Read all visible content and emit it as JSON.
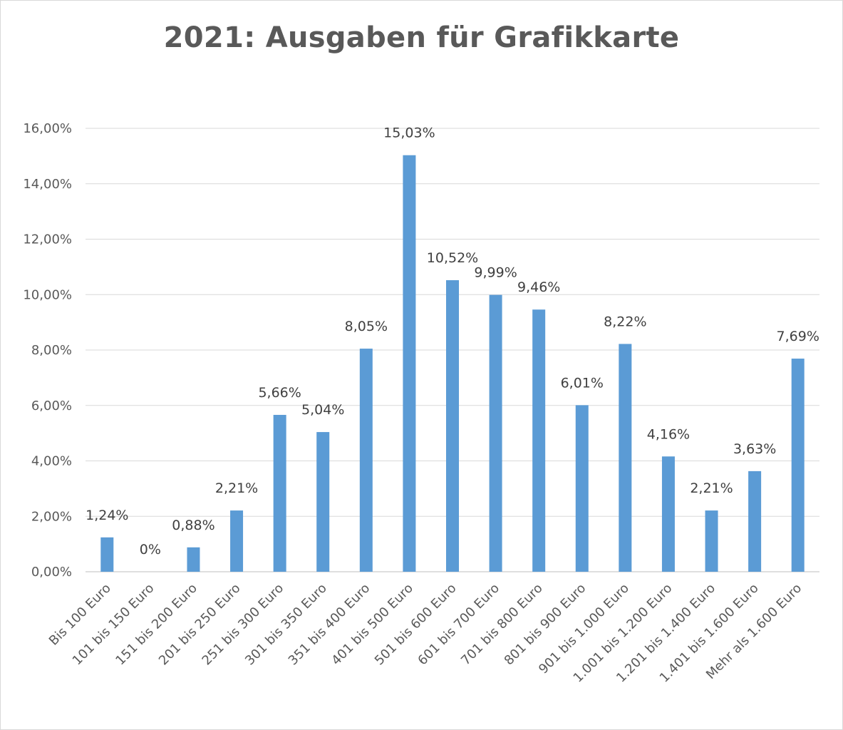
{
  "chart_data": {
    "type": "bar",
    "title": "2021: Ausgaben für Grafikkarte",
    "xlabel": "",
    "ylabel": "",
    "ylim": [
      0,
      16
    ],
    "yticks": [
      0,
      2,
      4,
      6,
      8,
      10,
      12,
      14,
      16
    ],
    "ytick_labels": [
      "0,00%",
      "2,00%",
      "4,00%",
      "6,00%",
      "8,00%",
      "10,00%",
      "12,00%",
      "14,00%",
      "16,00%"
    ],
    "grid": true,
    "legend": "none",
    "bar_color": "#5b9bd5",
    "categories": [
      "Bis 100 Euro",
      "101 bis 150 Euro",
      "151 bis 200 Euro",
      "201 bis 250 Euro",
      "251 bis 300 Euro",
      "301 bis 350 Euro",
      "351 bis 400 Euro",
      "401 bis 500 Euro",
      "501 bis 600 Euro",
      "601 bis 700 Euro",
      "701 bis 800 Euro",
      "801 bis 900 Euro",
      "901 bis 1.000 Euro",
      "1.001 bis 1.200 Euro",
      "1.201 bis 1.400 Euro",
      "1.401 bis 1.600 Euro",
      "Mehr als 1.600 Euro"
    ],
    "values": [
      1.24,
      0,
      0.88,
      2.21,
      5.66,
      5.04,
      8.05,
      15.03,
      10.52,
      9.99,
      9.46,
      6.01,
      8.22,
      4.16,
      2.21,
      3.63,
      7.69
    ],
    "data_labels": [
      "1,24%",
      "0%",
      "0,88%",
      "2,21%",
      "5,66%",
      "5,04%",
      "8,05%",
      "15,03%",
      "10,52%",
      "9,99%",
      "9,46%",
      "6,01%",
      "8,22%",
      "4,16%",
      "2,21%",
      "3,63%",
      "7,69%"
    ]
  }
}
